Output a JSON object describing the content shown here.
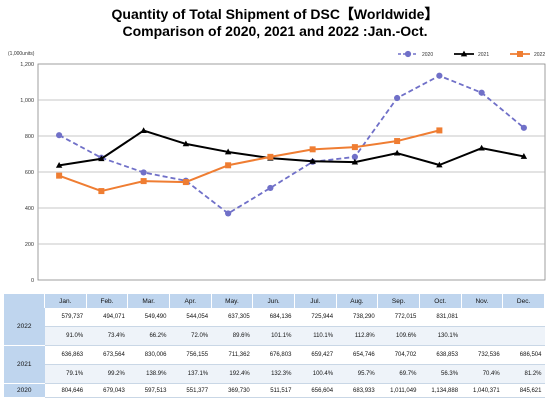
{
  "title_line1": "Quantity of Total Shipment of DSC【Worldwide】",
  "title_line2": "Comparison of 2020, 2021 and 2022 :Jan.-Oct.",
  "chart_data": {
    "type": "line",
    "unit_label": "(1,000units)",
    "categories": [
      "Jan.",
      "Feb.",
      "Mar.",
      "Apr.",
      "May.",
      "Jun.",
      "Jul.",
      "Aug.",
      "Sep.",
      "Oct.",
      "Nov.",
      "Dec."
    ],
    "ylim": [
      0,
      1200
    ],
    "yticks": [
      "0",
      "200",
      "400",
      "600",
      "800",
      "1,000",
      "1,200"
    ],
    "grid": true,
    "legend_position": "top-right",
    "series": [
      {
        "name": "2020",
        "color": "#7070c8",
        "dashed": true,
        "marker": "circle",
        "values": [
          804.646,
          679.043,
          597.513,
          551.377,
          369.73,
          511.517,
          656.604,
          683.933,
          1011.049,
          1134.888,
          1040.371,
          845.621
        ]
      },
      {
        "name": "2021",
        "color": "#000000",
        "dashed": false,
        "marker": "triangle",
        "values": [
          636.863,
          673.564,
          830.006,
          756.155,
          711.362,
          676.803,
          659.427,
          654.746,
          704.702,
          638.853,
          732.536,
          686.504
        ]
      },
      {
        "name": "2022",
        "color": "#ef7d32",
        "dashed": false,
        "marker": "square",
        "values": [
          579.737,
          494.071,
          549.49,
          544.054,
          637.305,
          684.136,
          725.944,
          738.29,
          772.015,
          831.081,
          null,
          null
        ]
      }
    ]
  },
  "table": {
    "columns": [
      "Jan.",
      "Feb.",
      "Mar.",
      "Apr.",
      "May.",
      "Jun.",
      "Jul.",
      "Aug.",
      "Sep.",
      "Oct.",
      "Nov.",
      "Dec."
    ],
    "rows": [
      {
        "year": "2022",
        "values": [
          "579,737",
          "494,071",
          "549,490",
          "544,054",
          "637,305",
          "684,136",
          "725,944",
          "738,290",
          "772,015",
          "831,081",
          "",
          ""
        ],
        "percents": [
          "91.0%",
          "73.4%",
          "66.2%",
          "72.0%",
          "89.6%",
          "101.1%",
          "110.1%",
          "112.8%",
          "109.6%",
          "130.1%",
          "",
          ""
        ]
      },
      {
        "year": "2021",
        "values": [
          "636,863",
          "673,564",
          "830,006",
          "756,155",
          "711,362",
          "676,803",
          "659,427",
          "654,746",
          "704,702",
          "638,853",
          "732,536",
          "686,504"
        ],
        "percents": [
          "79.1%",
          "99.2%",
          "138.9%",
          "137.1%",
          "192.4%",
          "132.3%",
          "100.4%",
          "95.7%",
          "69.7%",
          "56.3%",
          "70.4%",
          "81.2%"
        ]
      },
      {
        "year": "2020",
        "values": [
          "804,646",
          "679,043",
          "597,513",
          "551,377",
          "369,730",
          "511,517",
          "656,604",
          "683,933",
          "1,011,049",
          "1,134,888",
          "1,040,371",
          "845,621"
        ]
      }
    ]
  }
}
